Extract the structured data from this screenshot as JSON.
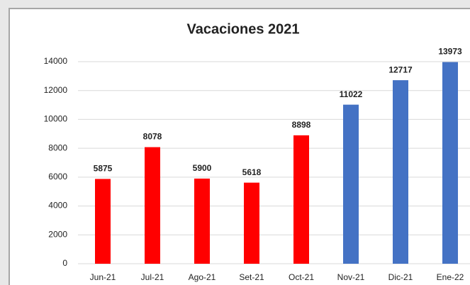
{
  "chart_data": {
    "type": "bar",
    "title": "Vacaciones 2021",
    "categories": [
      "Jun-21",
      "Jul-21",
      "Ago-21",
      "Set-21",
      "Oct-21",
      "Nov-21",
      "Dic-21",
      "Ene-22"
    ],
    "values": [
      5875,
      8078,
      5900,
      5618,
      8898,
      11022,
      12717,
      13973
    ],
    "colors": [
      "#ff0000",
      "#ff0000",
      "#ff0000",
      "#ff0000",
      "#ff0000",
      "#4472c4",
      "#4472c4",
      "#4472c4"
    ],
    "ylim": [
      0,
      14000
    ],
    "yticks": [
      0,
      2000,
      4000,
      6000,
      8000,
      10000,
      12000,
      14000
    ],
    "grid": true
  }
}
